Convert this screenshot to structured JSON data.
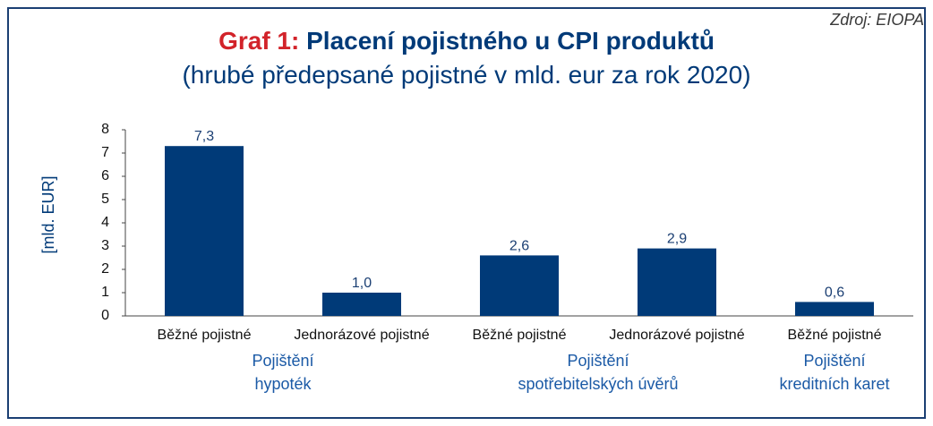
{
  "source": "Zdroj: EIOPA",
  "title_prefix": "Graf 1:",
  "title_main": "Placení pojistného u CPI produktů",
  "subtitle": "(hrubé předepsané pojistné v mld. eur za rok 2020)",
  "colors": {
    "bar": "#003a78",
    "title_prefix": "#d2232a",
    "title": "#003a78",
    "group_label": "#1b5aa6",
    "frame": "#1b3f73"
  },
  "chart_data": {
    "type": "bar",
    "title": "Placení pojistného u CPI produktů",
    "subtitle": "(hrubé předepsané pojistné v mld. eur za rok 2020)",
    "xlabel": "",
    "ylabel": "[mld. EUR]",
    "ylim": [
      0,
      8
    ],
    "yticks": [
      "0",
      "1",
      "2",
      "3",
      "4",
      "5",
      "6",
      "7",
      "8"
    ],
    "grid": false,
    "categories": [
      "Běžné pojistné",
      "Jednorázové pojistné",
      "Běžné pojistné",
      "Jednorázové pojistné",
      "Běžné pojistné"
    ],
    "values": [
      7.3,
      1.0,
      2.6,
      2.9,
      0.6
    ],
    "value_labels": [
      "7,3",
      "1,0",
      "2,6",
      "2,9",
      "0,6"
    ],
    "groups": [
      {
        "line1": "Pojištění",
        "line2": "hypoték"
      },
      {
        "line1": "Pojištění",
        "line2": "spotřebitelských úvěrů"
      },
      {
        "line1": "Pojištění",
        "line2": "kreditních karet"
      }
    ]
  }
}
